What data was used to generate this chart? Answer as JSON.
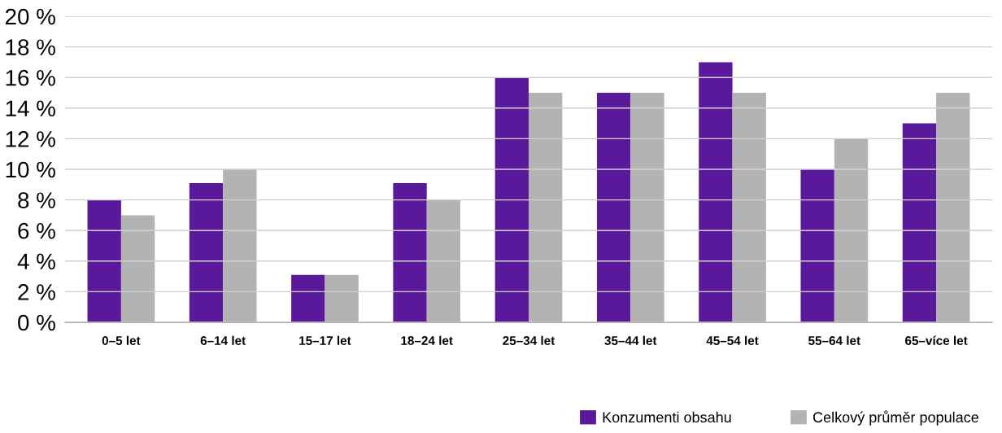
{
  "chart_data": {
    "type": "bar",
    "categories": [
      "0–5 let",
      "6–14 let",
      "15–17 let",
      "18–24 let",
      "25–34 let",
      "35–44 let",
      "45–54 let",
      "55–64 let",
      "65–více let"
    ],
    "series": [
      {
        "name": "Konzumenti obsahu",
        "color": "#5a189a",
        "values": [
          8,
          9.1,
          3.1,
          9.1,
          16,
          15,
          17,
          10,
          13
        ]
      },
      {
        "name": "Celkový průměr populace",
        "color": "#b3b3b3",
        "values": [
          7,
          10,
          3.1,
          8,
          15,
          15,
          15,
          12,
          15
        ]
      }
    ],
    "ylim": [
      0,
      20
    ],
    "yticks": [
      {
        "value": 0,
        "label": "0 %"
      },
      {
        "value": 2,
        "label": "2 %"
      },
      {
        "value": 4,
        "label": "4 %"
      },
      {
        "value": 6,
        "label": "6 %"
      },
      {
        "value": 8,
        "label": "8 %"
      },
      {
        "value": 10,
        "label": "10 %"
      },
      {
        "value": 12,
        "label": "12 %"
      },
      {
        "value": 14,
        "label": "14 %"
      },
      {
        "value": 16,
        "label": "16 %"
      },
      {
        "value": 18,
        "label": "18 %"
      },
      {
        "value": 20,
        "label": "20 %"
      }
    ],
    "grid": "y",
    "legend": "bottom right"
  }
}
